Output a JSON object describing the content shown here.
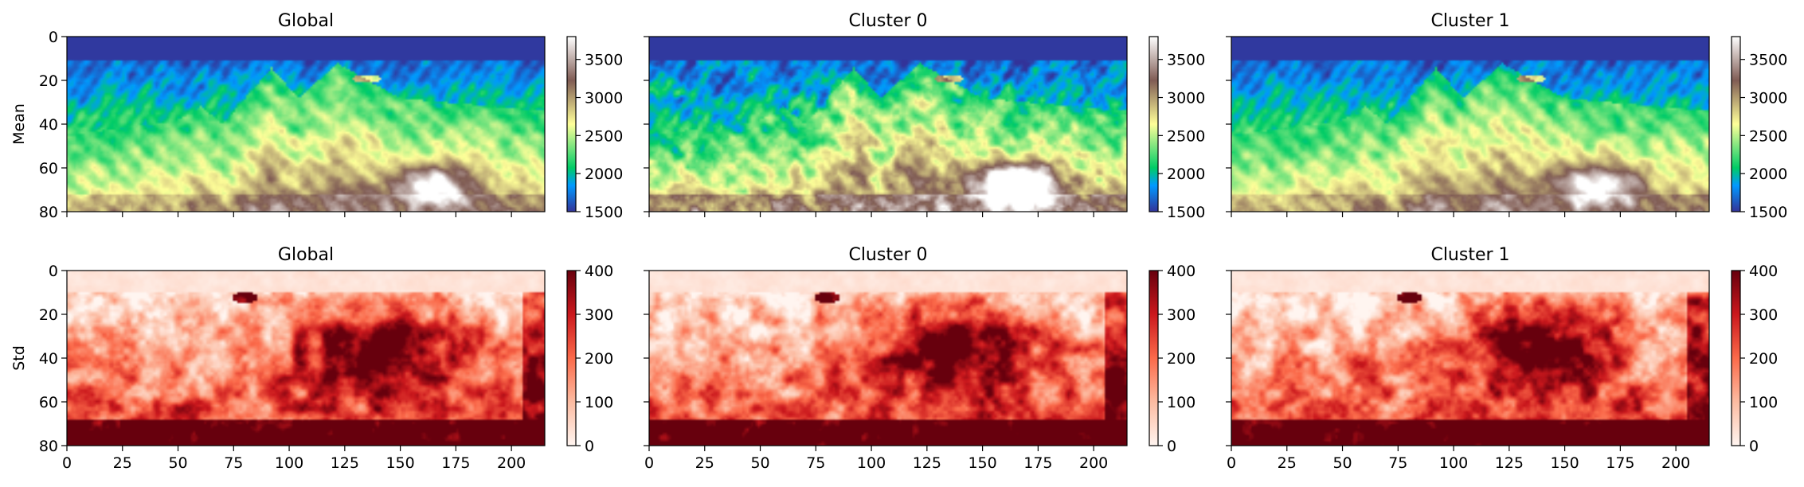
{
  "chart_data": [
    {
      "type": "heatmap",
      "row": 0,
      "col": 0,
      "title": "Global",
      "ylabel": "Mean",
      "cmap": "terrain",
      "clim": [
        1500,
        3800
      ],
      "xlim": [
        0,
        215
      ],
      "ylim": [
        80,
        0
      ],
      "x_ticks": [
        0,
        25,
        50,
        75,
        100,
        125,
        150,
        175,
        200
      ],
      "y_ticks": [
        0,
        20,
        40,
        60,
        80
      ],
      "colorbar_ticks": [
        1500,
        2000,
        2500,
        3000,
        3500
      ],
      "show_xticklabels": false,
      "variant": 0
    },
    {
      "type": "heatmap",
      "row": 0,
      "col": 1,
      "title": "Cluster 0",
      "ylabel": "",
      "cmap": "terrain",
      "clim": [
        1500,
        3800
      ],
      "xlim": [
        0,
        215
      ],
      "ylim": [
        80,
        0
      ],
      "x_ticks": [
        0,
        25,
        50,
        75,
        100,
        125,
        150,
        175,
        200
      ],
      "y_ticks": [
        0,
        20,
        40,
        60,
        80
      ],
      "colorbar_ticks": [
        1500,
        2000,
        2500,
        3000,
        3500
      ],
      "show_xticklabels": false,
      "variant": 1
    },
    {
      "type": "heatmap",
      "row": 0,
      "col": 2,
      "title": "Cluster 1",
      "ylabel": "",
      "cmap": "terrain",
      "clim": [
        1500,
        3800
      ],
      "xlim": [
        0,
        215
      ],
      "ylim": [
        80,
        0
      ],
      "x_ticks": [
        0,
        25,
        50,
        75,
        100,
        125,
        150,
        175,
        200
      ],
      "y_ticks": [
        0,
        20,
        40,
        60,
        80
      ],
      "colorbar_ticks": [
        1500,
        2000,
        2500,
        3000,
        3500
      ],
      "show_xticklabels": false,
      "variant": 2
    },
    {
      "type": "heatmap",
      "row": 1,
      "col": 0,
      "title": "Global",
      "ylabel": "Std",
      "cmap": "Reds",
      "clim": [
        0,
        400
      ],
      "xlim": [
        0,
        215
      ],
      "ylim": [
        80,
        0
      ],
      "x_ticks": [
        0,
        25,
        50,
        75,
        100,
        125,
        150,
        175,
        200
      ],
      "y_ticks": [
        0,
        20,
        40,
        60,
        80
      ],
      "colorbar_ticks": [
        0,
        100,
        200,
        300,
        400
      ],
      "show_xticklabels": true,
      "variant": 0
    },
    {
      "type": "heatmap",
      "row": 1,
      "col": 1,
      "title": "Cluster 0",
      "ylabel": "",
      "cmap": "Reds",
      "clim": [
        0,
        400
      ],
      "xlim": [
        0,
        215
      ],
      "ylim": [
        80,
        0
      ],
      "x_ticks": [
        0,
        25,
        50,
        75,
        100,
        125,
        150,
        175,
        200
      ],
      "y_ticks": [
        0,
        20,
        40,
        60,
        80
      ],
      "colorbar_ticks": [
        0,
        100,
        200,
        300,
        400
      ],
      "show_xticklabels": true,
      "variant": 1
    },
    {
      "type": "heatmap",
      "row": 1,
      "col": 2,
      "title": "Cluster 1",
      "ylabel": "",
      "cmap": "Reds",
      "clim": [
        0,
        400
      ],
      "xlim": [
        0,
        215
      ],
      "ylim": [
        80,
        0
      ],
      "x_ticks": [
        0,
        25,
        50,
        75,
        100,
        125,
        150,
        175,
        200
      ],
      "y_ticks": [
        0,
        20,
        40,
        60,
        80
      ],
      "colorbar_ticks": [
        0,
        100,
        200,
        300,
        400
      ],
      "show_xticklabels": true,
      "variant": 2
    }
  ]
}
